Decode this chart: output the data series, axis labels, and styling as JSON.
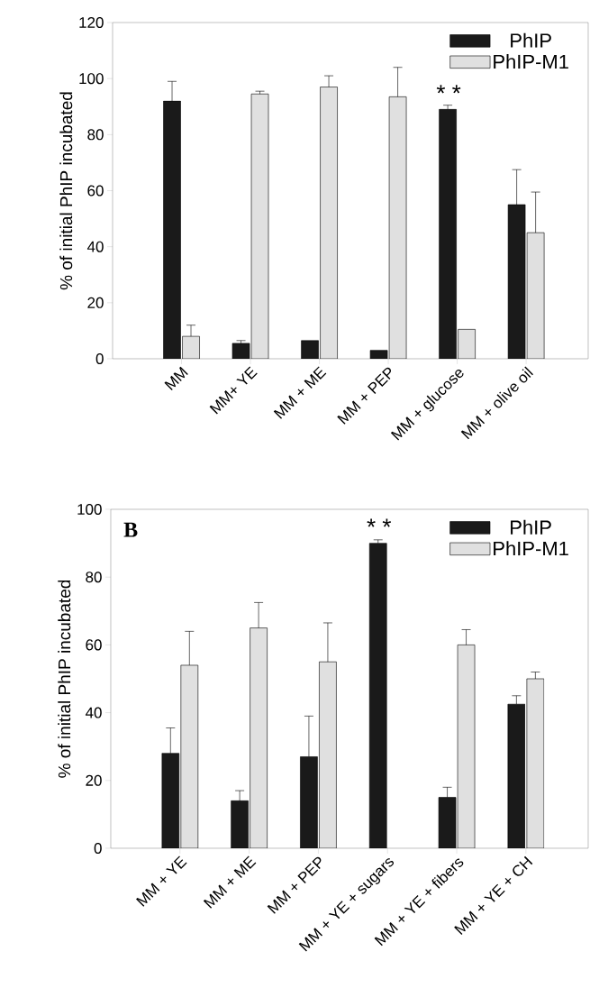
{
  "chart_data": [
    {
      "type": "bar",
      "ylabel": "% of initial PhIP incubated",
      "categories": [
        "MM",
        "MM+ YE",
        "MM + ME",
        "MM + PEP",
        "MM + glucose",
        "MM + olive oil"
      ],
      "series": [
        {
          "name": "PhIP",
          "color": "#1a1a1a",
          "values": [
            92,
            5.5,
            6.5,
            3,
            89,
            55
          ],
          "errors": [
            7,
            1,
            null,
            null,
            1.5,
            12.5
          ]
        },
        {
          "name": "PhIP-M1",
          "color": "#e0e0e0",
          "values": [
            8,
            94.5,
            97,
            93.5,
            10.5,
            45
          ],
          "errors": [
            4,
            1,
            4,
            10.5,
            null,
            14.5
          ]
        }
      ],
      "ylim": [
        0,
        120
      ],
      "yticks": [
        0,
        20,
        40,
        60,
        80,
        100,
        120
      ],
      "legend": "top right",
      "annotations": [
        {
          "text": "* *",
          "x": "MM + glucose",
          "y": 89
        }
      ]
    },
    {
      "type": "bar",
      "ylabel": "% of initial PhIP incubated",
      "categories": [
        "MM + YE",
        "MM + ME",
        "MM + PEP",
        "MM + YE + sugars",
        "MM + YE + fibers",
        "MM + YE + CH"
      ],
      "series": [
        {
          "name": "PhIP",
          "color": "#1a1a1a",
          "values": [
            28,
            14,
            27,
            90,
            15,
            42.5
          ],
          "errors": [
            7.5,
            3,
            12,
            1,
            3,
            2.5
          ]
        },
        {
          "name": "PhIP-M1",
          "color": "#e0e0e0",
          "values": [
            54,
            65,
            55,
            null,
            60,
            50
          ],
          "errors": [
            10,
            7.5,
            11.5,
            null,
            4.5,
            2
          ]
        }
      ],
      "ylim": [
        0,
        100
      ],
      "yticks": [
        0,
        20,
        40,
        60,
        80,
        100
      ],
      "legend": "top right",
      "annotations": [
        "B",
        {
          "text": "* *",
          "x": "MM + YE + sugars",
          "y": 90
        }
      ]
    }
  ]
}
